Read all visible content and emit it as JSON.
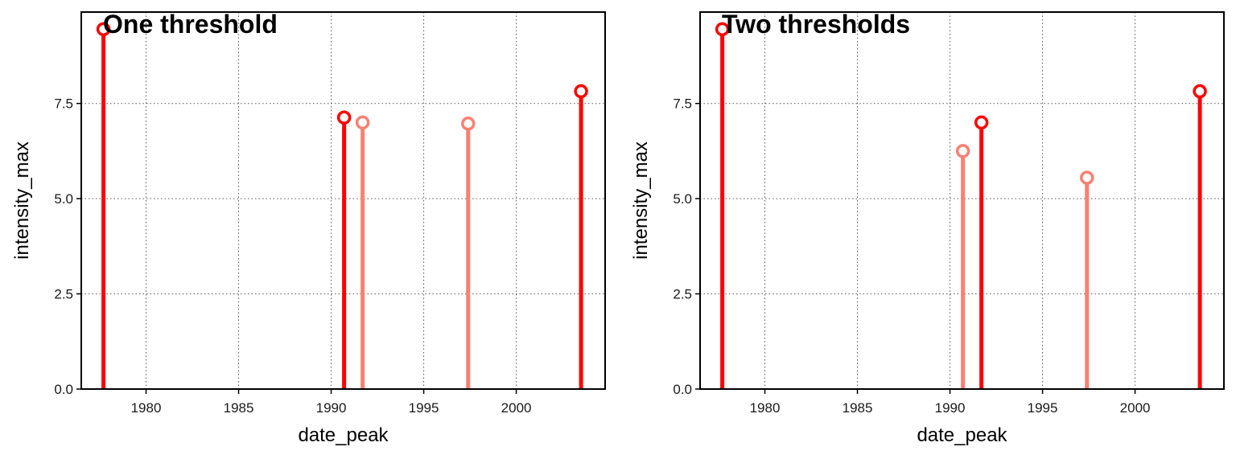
{
  "chart_data": [
    {
      "type": "lollipop",
      "title": "One threshold",
      "xlabel": "date_peak",
      "ylabel": "intensity_max",
      "xlim": [
        1976.5,
        2004.8
      ],
      "ylim": [
        0,
        9.9
      ],
      "xticks": [
        "1980",
        "1985",
        "1990",
        "1995",
        "2000"
      ],
      "yticks": [
        "0.0",
        "2.5",
        "5.0",
        "7.5"
      ],
      "grid": true,
      "colors": {
        "dark": "#ff0000",
        "light": "#fa8072"
      },
      "points": [
        {
          "x": 1977.7,
          "y": 9.45,
          "shade": "dark"
        },
        {
          "x": 1990.7,
          "y": 7.13,
          "shade": "dark"
        },
        {
          "x": 1991.7,
          "y": 7.0,
          "shade": "light"
        },
        {
          "x": 1997.4,
          "y": 6.97,
          "shade": "light"
        },
        {
          "x": 2003.5,
          "y": 7.82,
          "shade": "dark"
        }
      ]
    },
    {
      "type": "lollipop",
      "title": "Two thresholds",
      "xlabel": "date_peak",
      "ylabel": "intensity_max",
      "xlim": [
        1976.5,
        2004.8
      ],
      "ylim": [
        0,
        9.9
      ],
      "xticks": [
        "1980",
        "1985",
        "1990",
        "1995",
        "2000"
      ],
      "yticks": [
        "0.0",
        "2.5",
        "5.0",
        "7.5"
      ],
      "grid": true,
      "colors": {
        "dark": "#ff0000",
        "light": "#fa8072"
      },
      "points": [
        {
          "x": 1977.7,
          "y": 9.45,
          "shade": "dark"
        },
        {
          "x": 1990.7,
          "y": 6.25,
          "shade": "light"
        },
        {
          "x": 1991.7,
          "y": 7.0,
          "shade": "dark"
        },
        {
          "x": 1997.4,
          "y": 5.55,
          "shade": "light"
        },
        {
          "x": 2003.5,
          "y": 7.82,
          "shade": "dark"
        }
      ]
    }
  ]
}
